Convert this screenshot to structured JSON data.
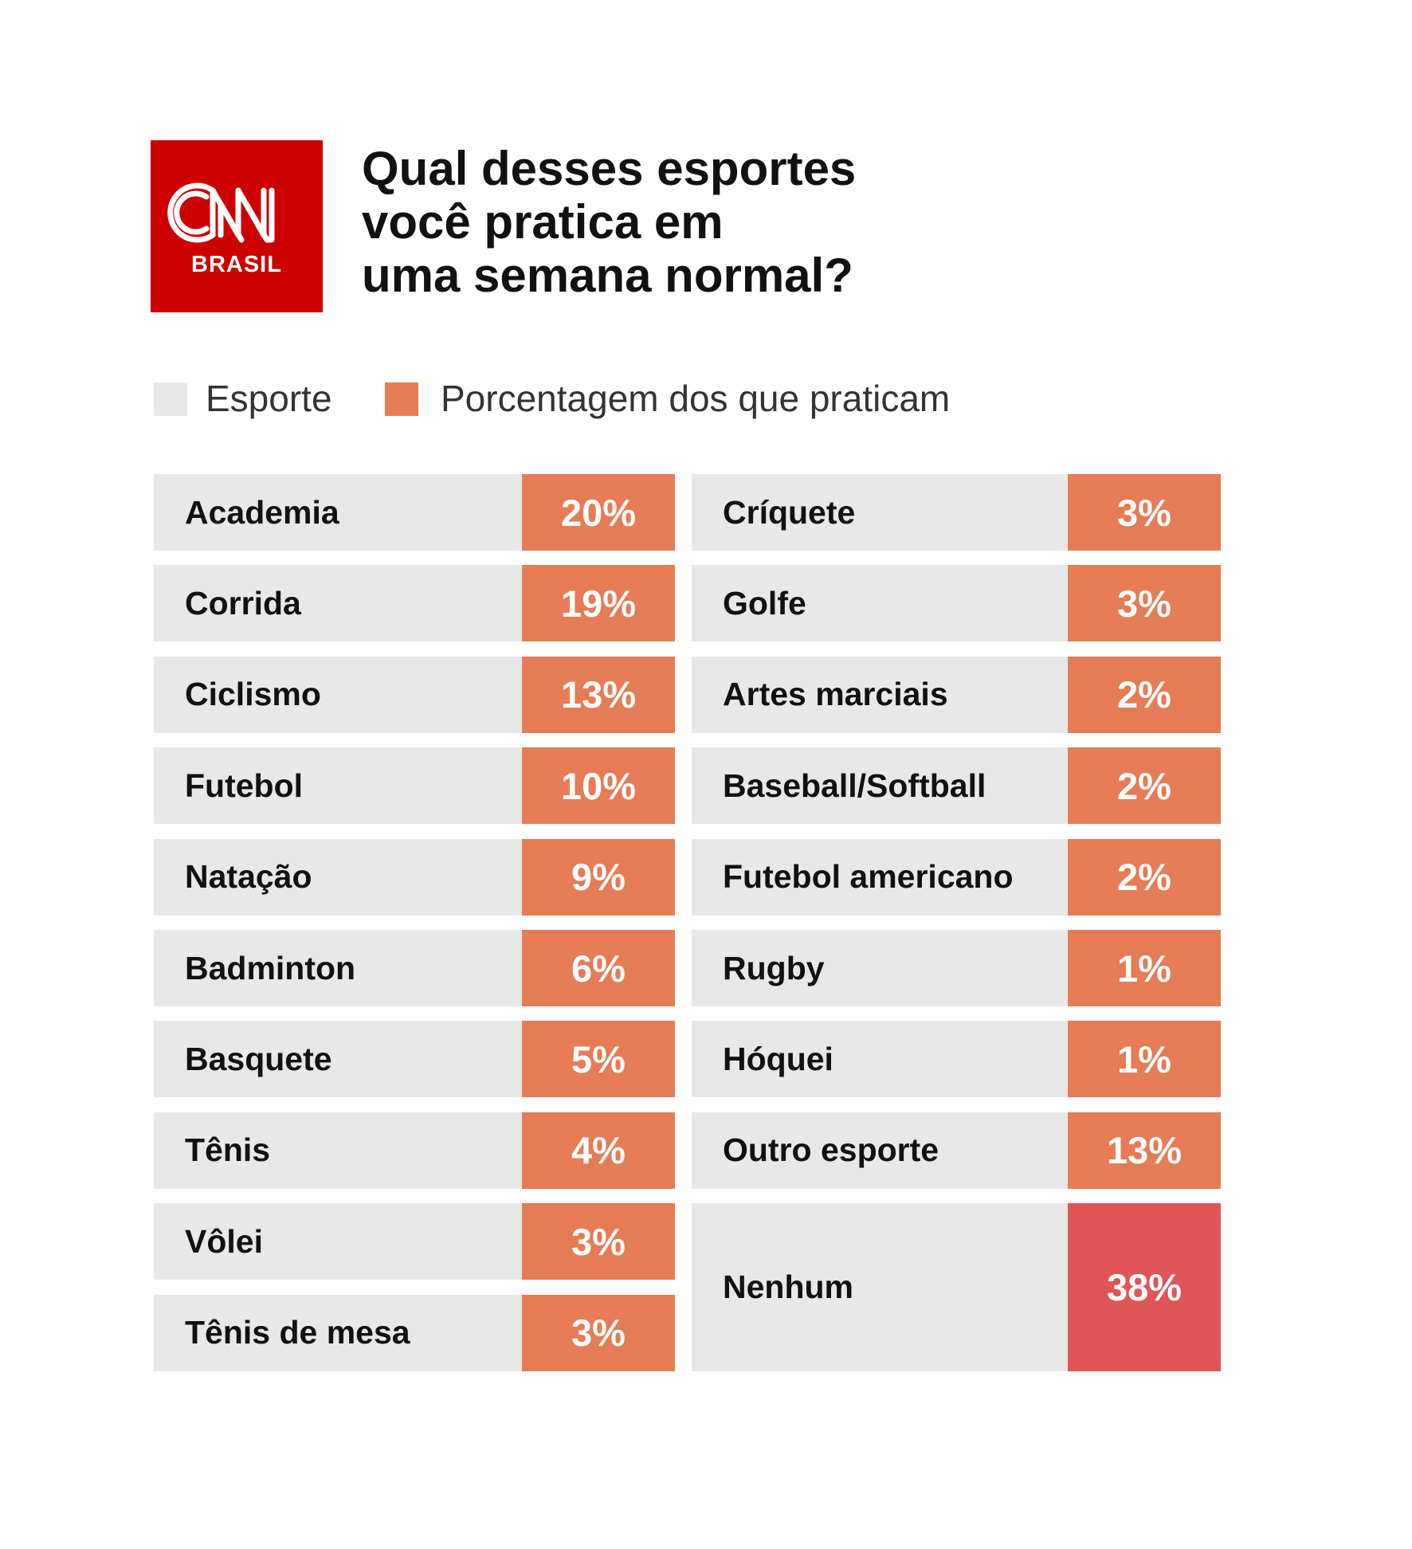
{
  "brand": {
    "logo_text": "CNN",
    "logo_sub": "BRASIL",
    "logo_color": "#cc0000"
  },
  "title_lines": [
    "Qual desses esportes",
    "você pratica em",
    "uma semana normal?"
  ],
  "legend": [
    {
      "label": "Esporte",
      "color": "#e8e8e8"
    },
    {
      "label": "Porcentagem dos que praticam",
      "color": "#e57c55"
    }
  ],
  "colors": {
    "cell_bg": "#e8e8e8",
    "pct_bg": "#e57c55",
    "highlight_bg": "#e05555"
  },
  "chart_data": {
    "type": "table",
    "title": "Qual desses esportes você pratica em uma semana normal?",
    "columns": [
      "Esporte",
      "Porcentagem dos que praticam"
    ],
    "rows": [
      {
        "sport": "Academia",
        "value": 20,
        "label": "20%"
      },
      {
        "sport": "Corrida",
        "value": 19,
        "label": "19%"
      },
      {
        "sport": "Ciclismo",
        "value": 13,
        "label": "13%"
      },
      {
        "sport": "Futebol",
        "value": 10,
        "label": "10%"
      },
      {
        "sport": "Natação",
        "value": 9,
        "label": "9%"
      },
      {
        "sport": "Badminton",
        "value": 6,
        "label": "6%"
      },
      {
        "sport": "Basquete",
        "value": 5,
        "label": "5%"
      },
      {
        "sport": "Tênis",
        "value": 4,
        "label": "4%"
      },
      {
        "sport": "Vôlei",
        "value": 3,
        "label": "3%"
      },
      {
        "sport": "Tênis de mesa",
        "value": 3,
        "label": "3%"
      },
      {
        "sport": "Críquete",
        "value": 3,
        "label": "3%"
      },
      {
        "sport": "Golfe",
        "value": 3,
        "label": "3%"
      },
      {
        "sport": "Artes marciais",
        "value": 2,
        "label": "2%"
      },
      {
        "sport": "Baseball/Softball",
        "value": 2,
        "label": "2%"
      },
      {
        "sport": "Futebol americano",
        "value": 2,
        "label": "2%"
      },
      {
        "sport": "Rugby",
        "value": 1,
        "label": "1%"
      },
      {
        "sport": "Hóquei",
        "value": 1,
        "label": "1%"
      },
      {
        "sport": "Outro esporte",
        "value": 13,
        "label": "13%"
      },
      {
        "sport": "Nenhum",
        "value": 38,
        "label": "38%",
        "highlight": true
      }
    ]
  }
}
